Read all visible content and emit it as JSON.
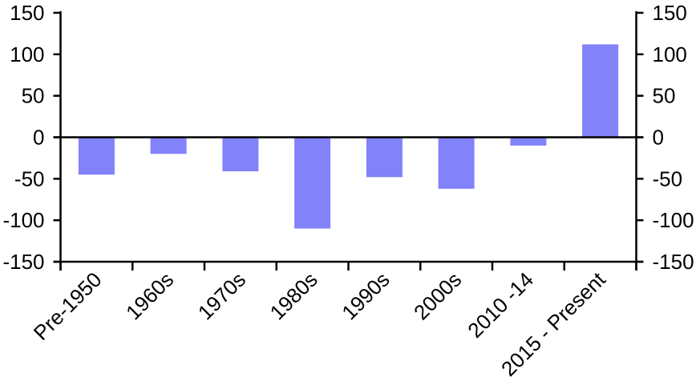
{
  "chart_data": {
    "type": "bar",
    "title": "",
    "xlabel": "",
    "ylabel": "",
    "categories": [
      "Pre-1950",
      "1960s",
      "1970s",
      "1980s",
      "1990s",
      "2000s",
      "2010 -14",
      "2015 - Present"
    ],
    "values": [
      -45,
      -20,
      -41,
      -110,
      -48,
      -62,
      -10,
      112
    ],
    "ylim": [
      -150,
      150
    ],
    "y_ticks": [
      150,
      100,
      50,
      0,
      -50,
      -100,
      -150
    ],
    "dual_y_axis": true,
    "grid": false,
    "legend": "none",
    "x_label_rotation_deg": 45,
    "colors": {
      "bar_fill": "#8282FA",
      "axis": "#000000",
      "text": "#000000",
      "background": "#FFFFFF"
    }
  }
}
